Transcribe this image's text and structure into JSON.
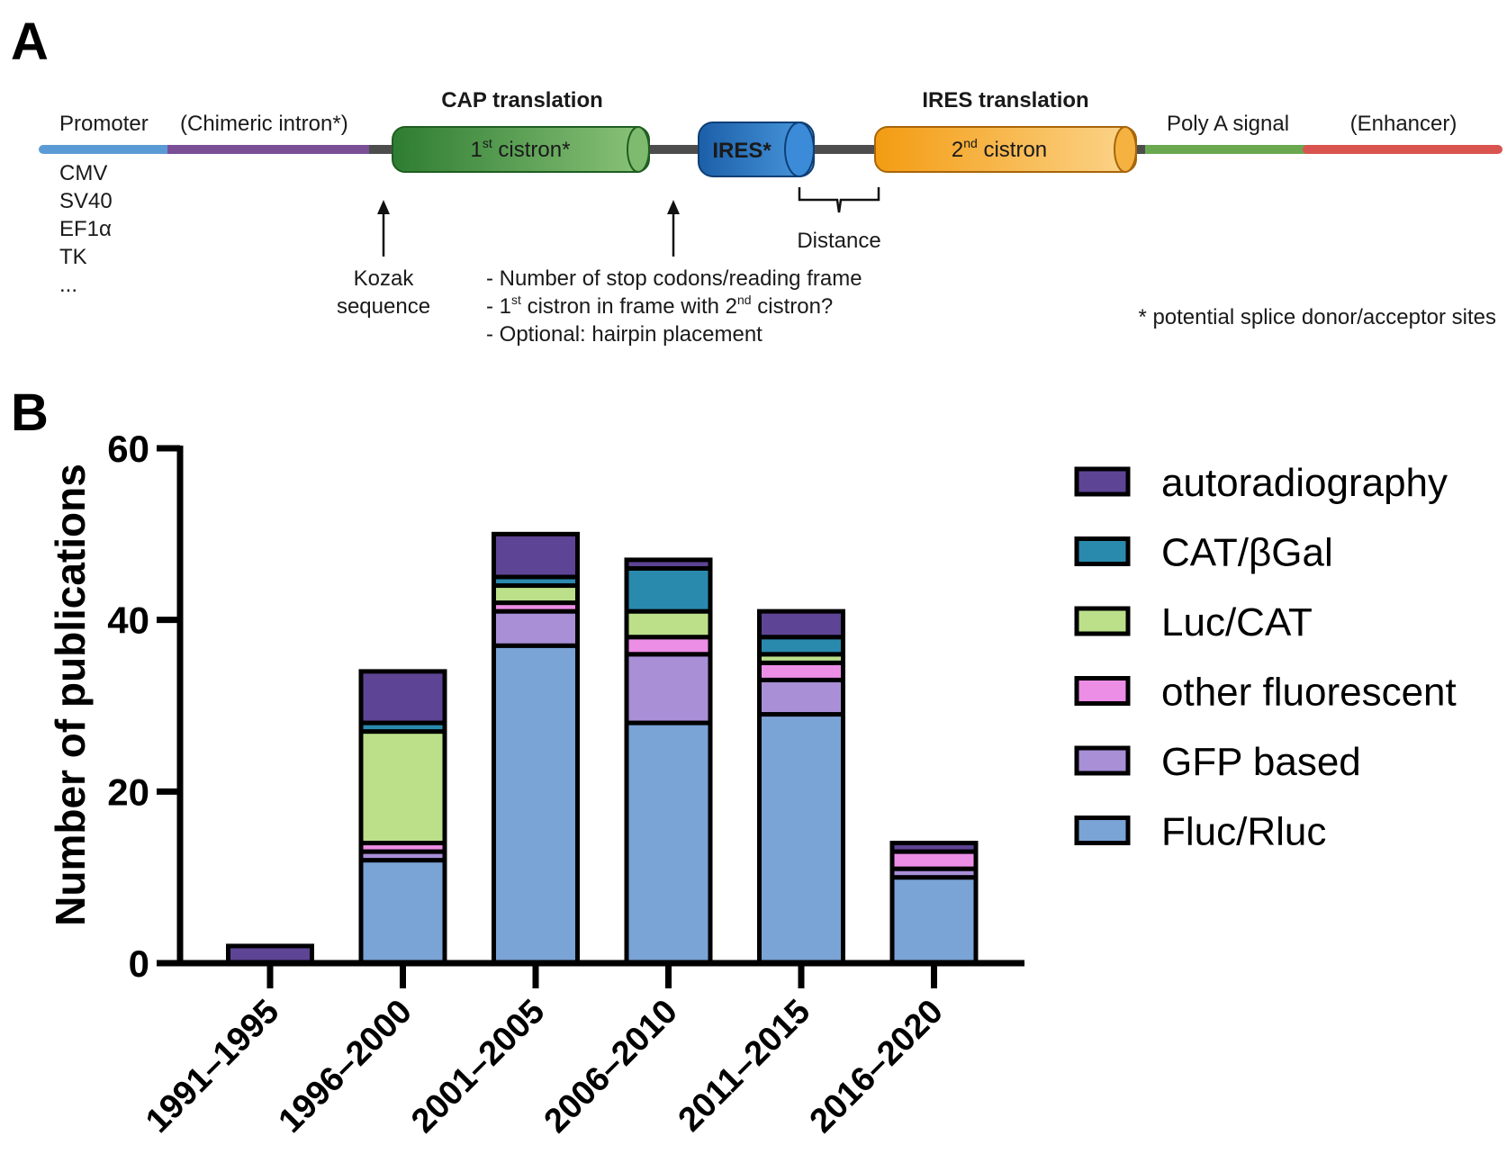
{
  "panels": {
    "a": "A",
    "b": "B"
  },
  "diagram": {
    "promoter": "Promoter",
    "promoter_options": [
      "CMV",
      "SV40",
      "EF1α",
      "TK",
      "..."
    ],
    "intron": "(Chimeric intron*)",
    "cap_translation": "CAP translation",
    "cistron1_base": "1",
    "cistron1_sup": "st",
    "cistron1_rest": " cistron*",
    "ires": "IRES*",
    "ires_translation": "IRES translation",
    "cistron2_base": "2",
    "cistron2_sup": "nd",
    "cistron2_rest": " cistron",
    "polya": "Poly A signal",
    "enhancer": "(Enhancer)",
    "distance": "Distance",
    "kozak_line1": "Kozak",
    "kozak_line2": "sequence",
    "note1": "- Number of stop codons/reading frame",
    "note2_a": "- 1",
    "note2_sup1": "st",
    "note2_b": " cistron in frame with 2",
    "note2_sup2": "nd",
    "note2_c": " cistron?",
    "note3": "- Optional: hairpin placement",
    "footnote": "* potential splice donor/acceptor sites",
    "colors": {
      "promoter": "#5b9bd5",
      "intron": "#7a4f96",
      "spacer": "#4d4d4d",
      "cistron1": "#3f8f3a",
      "ires": "#1f6fbf",
      "cistron2": "#f5a623",
      "polya": "#6aa84f",
      "enhancer": "#d9534f"
    }
  },
  "chart_data": {
    "type": "bar",
    "stacked": true,
    "categories": [
      "1991–1995",
      "1996–2000",
      "2001–2005",
      "2006–2010",
      "2011–2015",
      "2016–2020"
    ],
    "series": [
      {
        "name": "Fluc/Rluc",
        "color": "#7aa3d6",
        "values": [
          0,
          12,
          37,
          28,
          29,
          10
        ]
      },
      {
        "name": "GFP based",
        "color": "#a88fd6",
        "values": [
          0,
          1,
          4,
          8,
          4,
          1
        ]
      },
      {
        "name": "other fluorescent",
        "color": "#ec8ee6",
        "values": [
          0,
          1,
          1,
          2,
          2,
          2
        ]
      },
      {
        "name": "Luc/CAT",
        "color": "#bce08a",
        "values": [
          0,
          13,
          2,
          3,
          1,
          0
        ]
      },
      {
        "name": "CAT/βGal",
        "color": "#2a8aae",
        "values": [
          0,
          1,
          1,
          5,
          2,
          0
        ]
      },
      {
        "name": "autoradiography",
        "color": "#5e4494",
        "values": [
          2,
          6,
          5,
          1,
          3,
          1
        ]
      }
    ],
    "legend_order": [
      "autoradiography",
      "CAT/βGal",
      "Luc/CAT",
      "other fluorescent",
      "GFP based",
      "Fluc/Rluc"
    ],
    "ylabel": "Number of publications",
    "xlabel": "",
    "ylim": [
      0,
      60
    ],
    "yticks": [
      0,
      20,
      40,
      60
    ],
    "legend_position": "right"
  }
}
